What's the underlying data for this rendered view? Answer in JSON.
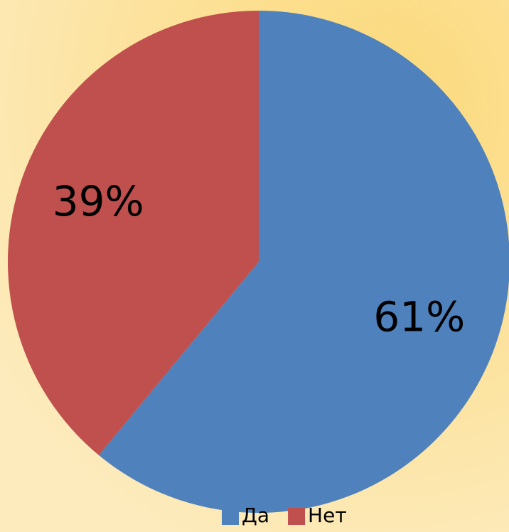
{
  "chart_data": {
    "type": "pie",
    "categories": [
      "Да",
      "Нет"
    ],
    "values": [
      61,
      39
    ],
    "value_labels": [
      "61%",
      "39%"
    ],
    "colors": [
      "#4f81bd",
      "#c0504d"
    ],
    "legend": "bottom"
  }
}
